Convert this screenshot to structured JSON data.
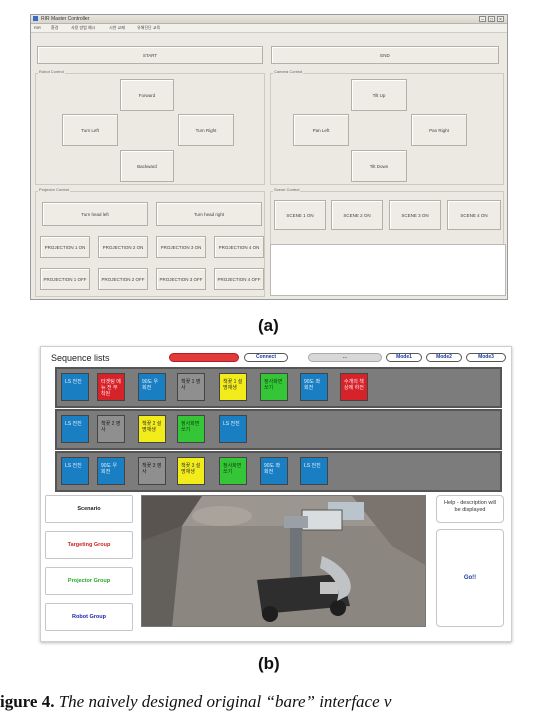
{
  "fig_a": {
    "label": "(a)",
    "window_title": "RIR Master Controller",
    "menu": [
      "RIR",
      "환경",
      "사용 방법 예시",
      "시연 교제",
      "유해진단 교육"
    ],
    "top_buttons": [
      "START",
      "END"
    ],
    "robot_control": {
      "label": "Robot Control",
      "forward": "Forward",
      "left": "Turn Left",
      "right": "Turn Right",
      "backward": "Backward"
    },
    "camera_control": {
      "label": "Camera Control",
      "up": "Tilt Up",
      "left": "Pan Left",
      "right": "Pan Right",
      "down": "Tilt Down"
    },
    "projector_control": {
      "label": "Projector Control",
      "head_left": "Turn head left",
      "head_right": "Turn head right",
      "on": [
        "PROJECTION 1 ON",
        "PROJECTION 2 ON",
        "PROJECTION 3 ON",
        "PROJECTION 4 ON"
      ],
      "off": [
        "PROJECTION 1 OFF",
        "PROJECTION 2 OFF",
        "PROJECTION 3 OFF",
        "PROJECTION 4 OFF"
      ]
    },
    "scene_control": {
      "label": "Scene Control",
      "buttons": [
        "SCENE 1 ON",
        "SCENE 2 ON",
        "SCENE 3 ON",
        "SCENE 4 ON"
      ]
    }
  },
  "fig_b": {
    "label": "(b)",
    "sequence_title": "Sequence lists",
    "top_pills": {
      "red": "",
      "connect": "Connect",
      "gray": "...",
      "mode1": "Mode1",
      "mode2": "Mode2",
      "mode3": "Mode3"
    },
    "rows": [
      [
        {
          "text": "LS 전진",
          "color": "blue"
        },
        {
          "text": "타겟팅 메뉴 전 부착된",
          "color": "red"
        },
        {
          "text": "90도 우 회전",
          "color": "blue"
        },
        {
          "text": "책꽂 1 영사",
          "color": "gray"
        },
        {
          "text": "책꽂 1 설명재생",
          "color": "yellow"
        },
        {
          "text": "정사화면 쏘기",
          "color": "green"
        },
        {
          "text": "90도 좌 회전",
          "color": "blue"
        },
        {
          "text": "수개의 책상에 하전",
          "color": "red"
        }
      ],
      [
        {
          "text": "LS 전진",
          "color": "blue"
        },
        {
          "text": "책꽂 2 영사",
          "color": "gray"
        },
        {
          "text": "책꽂 2 설명재생",
          "color": "yellow"
        },
        {
          "text": "정사화면 쏘기",
          "color": "green"
        },
        {
          "text": "LS 전진",
          "color": "blue"
        }
      ],
      [
        {
          "text": "LS 전진",
          "color": "blue"
        },
        {
          "text": "90도 우 회전",
          "color": "blue"
        },
        {
          "text": "책꽂 3 영사",
          "color": "gray"
        },
        {
          "text": "책꽂 3 설명재생",
          "color": "yellow"
        },
        {
          "text": "정사화면 쏘기",
          "color": "green"
        },
        {
          "text": "90도 좌 회전",
          "color": "blue"
        },
        {
          "text": "LS 전진",
          "color": "blue"
        }
      ]
    ],
    "side_buttons": [
      {
        "text": "Scenario",
        "color": "#222222"
      },
      {
        "text": "Targeting Group",
        "color": "#d22020"
      },
      {
        "text": "Projector Group",
        "color": "#2aa82a"
      },
      {
        "text": "Robot Group",
        "color": "#2222aa"
      }
    ],
    "help_text": "Help - description will be displayed",
    "go_button": "Go!!"
  },
  "caption": "igure 4. The naively designed original “bare” interface v"
}
